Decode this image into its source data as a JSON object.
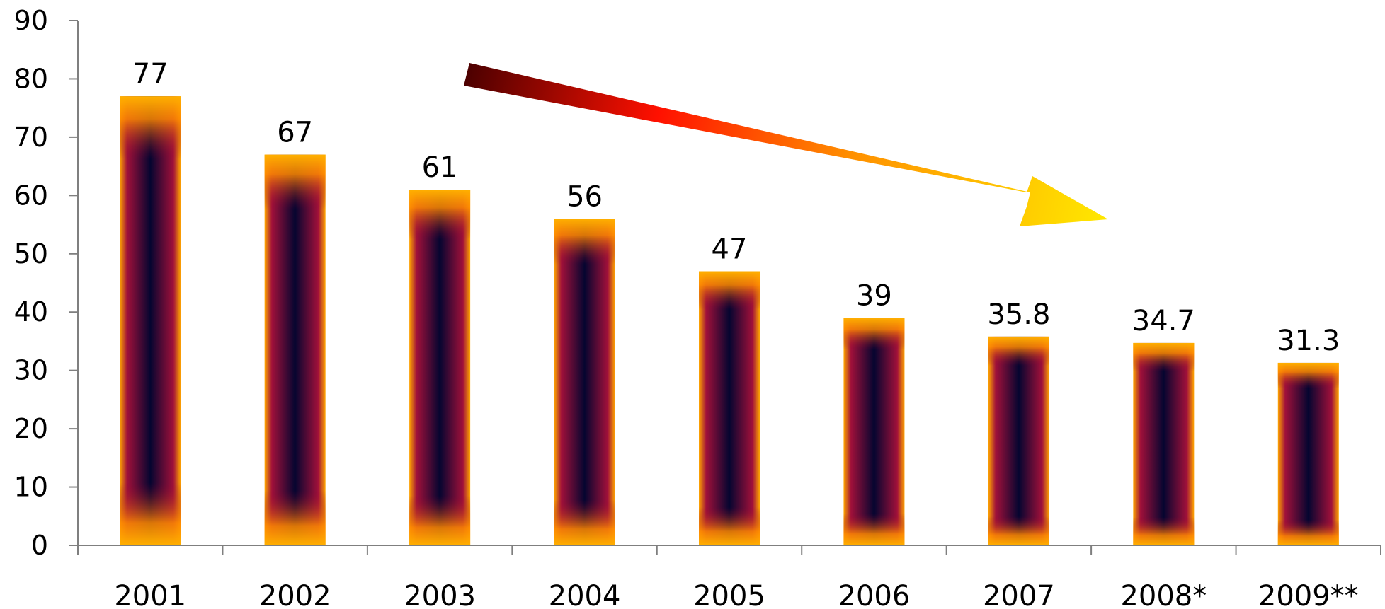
{
  "chart_data": {
    "type": "bar",
    "categories": [
      "2001",
      "2002",
      "2003",
      "2004",
      "2005",
      "2006",
      "2007",
      "2008*",
      "2009**"
    ],
    "values": [
      77,
      67,
      61,
      56,
      47,
      39,
      35.8,
      34.7,
      31.3
    ],
    "data_labels": [
      "77",
      "67",
      "61",
      "56",
      "47",
      "39",
      "35.8",
      "34.7",
      "31.3"
    ],
    "title": "",
    "xlabel": "",
    "ylabel": "",
    "ylim": [
      0,
      90
    ],
    "yticks": [
      0,
      10,
      20,
      30,
      40,
      50,
      60,
      70,
      80,
      90
    ],
    "ytick_labels": [
      "0",
      "10",
      "20",
      "30",
      "40",
      "50",
      "60",
      "70",
      "80",
      "90"
    ],
    "grid": false,
    "legend": "none",
    "annotation": "downward-trend-arrow",
    "colors": {
      "bar_edge": "#ffa500",
      "bar_mid": "#800040",
      "bar_core": "#000033",
      "arrow_start": "#4a0000",
      "arrow_mid": "#ff0000",
      "arrow_end": "#ffe000",
      "axis": "#7f7f7f"
    }
  }
}
